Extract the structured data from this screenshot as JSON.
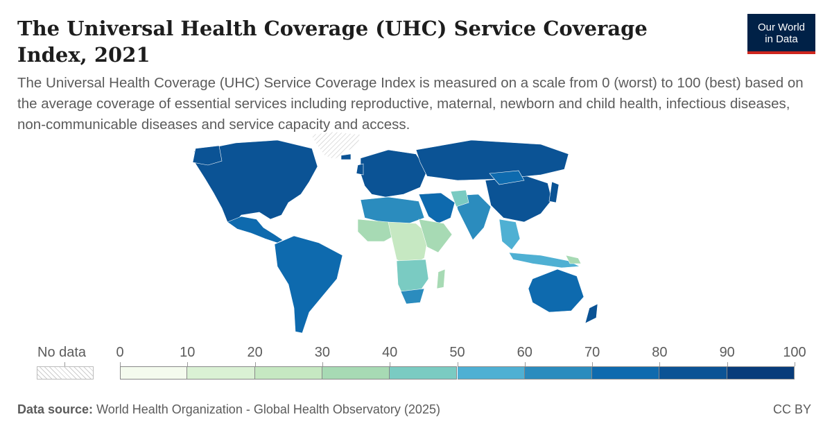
{
  "title": "The Universal Health Coverage (UHC) Service Coverage Index, 2021",
  "subtitle": "The Universal Health Coverage (UHC) Service Coverage Index is measured on a scale from 0 (worst) to 100 (best) based on the average coverage of essential services including reproductive, maternal, newborn and child health, infectious diseases, non-communicable diseases and service capacity and access.",
  "logo": {
    "line1": "Our World",
    "line2": "in Data"
  },
  "legend": {
    "no_data_label": "No data",
    "ticks": [
      "0",
      "10",
      "20",
      "30",
      "40",
      "50",
      "60",
      "70",
      "80",
      "90",
      "100"
    ],
    "colors": [
      "#f4fbee",
      "#daf1d4",
      "#c6e8c2",
      "#a7dab4",
      "#7acbc2",
      "#4fb0d3",
      "#2b8cbe",
      "#0e6aae",
      "#0b5395",
      "#083c7a"
    ]
  },
  "map_colors": {
    "very_high": "#0b5395",
    "high": "#0e6aae",
    "mid_high": "#2b8cbe",
    "mid": "#4fb0d3",
    "teal": "#7acbc2",
    "light_green": "#a7dab4",
    "pale_green": "#c6e8c2",
    "no_data_stroke": "#bbbbbb"
  },
  "source": {
    "label": "Data source:",
    "text": "World Health Organization - Global Health Observatory (2025)"
  },
  "license": "CC BY"
}
